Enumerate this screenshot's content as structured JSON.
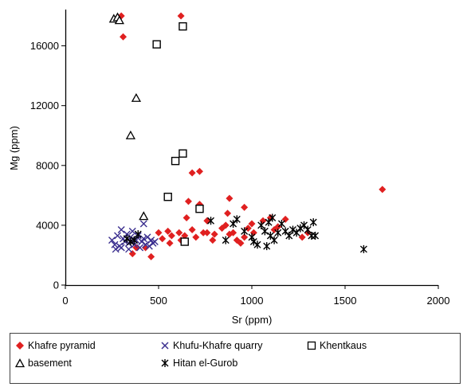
{
  "chart_data": {
    "type": "scatter",
    "xlabel": "Sr (ppm)",
    "ylabel": "Mg (ppm)",
    "xlim": [
      0,
      2000
    ],
    "ylim": [
      0,
      18000
    ],
    "x_ticks": [
      "0",
      "500",
      "1000",
      "1500",
      "2000"
    ],
    "y_ticks": [
      "0",
      "4000",
      "8000",
      "12000",
      "16000"
    ],
    "grid": false,
    "legend_position": "bottom",
    "series": [
      {
        "name": "Khafre pyramid",
        "marker": "diamond",
        "color": "#e02020",
        "points": [
          [
            300,
            18000
          ],
          [
            620,
            18000
          ],
          [
            310,
            16600
          ],
          [
            680,
            7500
          ],
          [
            720,
            7600
          ],
          [
            660,
            5600
          ],
          [
            720,
            5400
          ],
          [
            880,
            5800
          ],
          [
            960,
            5200
          ],
          [
            870,
            4800
          ],
          [
            760,
            4300
          ],
          [
            650,
            4500
          ],
          [
            550,
            3600
          ],
          [
            570,
            3300
          ],
          [
            610,
            3500
          ],
          [
            680,
            3700
          ],
          [
            700,
            3200
          ],
          [
            760,
            3500
          ],
          [
            800,
            3400
          ],
          [
            840,
            3800
          ],
          [
            860,
            4000
          ],
          [
            880,
            3400
          ],
          [
            900,
            3500
          ],
          [
            920,
            3000
          ],
          [
            940,
            2800
          ],
          [
            960,
            3200
          ],
          [
            980,
            3800
          ],
          [
            1000,
            4100
          ],
          [
            1060,
            4300
          ],
          [
            1100,
            4500
          ],
          [
            1140,
            3900
          ],
          [
            1180,
            4400
          ],
          [
            1300,
            3500
          ],
          [
            360,
            2100
          ],
          [
            380,
            2500
          ],
          [
            460,
            1900
          ],
          [
            500,
            3500
          ],
          [
            520,
            3100
          ],
          [
            430,
            2500
          ],
          [
            560,
            2800
          ],
          [
            620,
            3000
          ],
          [
            640,
            3300
          ],
          [
            1700,
            6400
          ],
          [
            1010,
            3500
          ],
          [
            1120,
            3700
          ],
          [
            1270,
            3200
          ],
          [
            790,
            3000
          ],
          [
            740,
            3500
          ]
        ]
      },
      {
        "name": "Khufu-Khafre quarry",
        "marker": "x",
        "color": "#3b2f8f",
        "points": [
          [
            250,
            3000
          ],
          [
            265,
            2700
          ],
          [
            280,
            3300
          ],
          [
            290,
            2600
          ],
          [
            300,
            3700
          ],
          [
            310,
            3100
          ],
          [
            320,
            2900
          ],
          [
            330,
            3400
          ],
          [
            340,
            2800
          ],
          [
            350,
            3200
          ],
          [
            360,
            3600
          ],
          [
            370,
            2700
          ],
          [
            380,
            3000
          ],
          [
            390,
            3300
          ],
          [
            400,
            2500
          ],
          [
            410,
            2900
          ],
          [
            420,
            3100
          ],
          [
            430,
            2700
          ],
          [
            440,
            3200
          ],
          [
            450,
            2600
          ],
          [
            460,
            3000
          ],
          [
            470,
            2800
          ],
          [
            270,
            2400
          ],
          [
            300,
            2500
          ],
          [
            340,
            2400
          ],
          [
            360,
            2900
          ],
          [
            420,
            4100
          ],
          [
            480,
            2900
          ]
        ]
      },
      {
        "name": "Khentkaus",
        "marker": "square",
        "color": "#000000",
        "points": [
          [
            630,
            17300
          ],
          [
            490,
            16100
          ],
          [
            630,
            8800
          ],
          [
            590,
            8300
          ],
          [
            550,
            5900
          ],
          [
            720,
            5100
          ],
          [
            640,
            2900
          ]
        ]
      },
      {
        "name": "basement",
        "marker": "triangle",
        "color": "#000000",
        "points": [
          [
            260,
            17800
          ],
          [
            280,
            17900
          ],
          [
            290,
            17700
          ],
          [
            380,
            12500
          ],
          [
            350,
            10000
          ],
          [
            420,
            4600
          ]
        ]
      },
      {
        "name": "Hitan el-Gurob",
        "marker": "asterisk",
        "color": "#000000",
        "points": [
          [
            330,
            3100
          ],
          [
            350,
            2900
          ],
          [
            370,
            3000
          ],
          [
            390,
            3400
          ],
          [
            780,
            4300
          ],
          [
            860,
            3000
          ],
          [
            900,
            4100
          ],
          [
            920,
            4400
          ],
          [
            960,
            3600
          ],
          [
            1000,
            3200
          ],
          [
            1010,
            2900
          ],
          [
            1030,
            2700
          ],
          [
            1050,
            4000
          ],
          [
            1070,
            3600
          ],
          [
            1080,
            2600
          ],
          [
            1090,
            4200
          ],
          [
            1100,
            3300
          ],
          [
            1110,
            4500
          ],
          [
            1120,
            3000
          ],
          [
            1140,
            3500
          ],
          [
            1160,
            4100
          ],
          [
            1180,
            3600
          ],
          [
            1200,
            3300
          ],
          [
            1220,
            3700
          ],
          [
            1240,
            3500
          ],
          [
            1260,
            3800
          ],
          [
            1280,
            4000
          ],
          [
            1300,
            3700
          ],
          [
            1320,
            3300
          ],
          [
            1330,
            4200
          ],
          [
            1340,
            3300
          ],
          [
            1600,
            2400
          ]
        ]
      }
    ]
  }
}
